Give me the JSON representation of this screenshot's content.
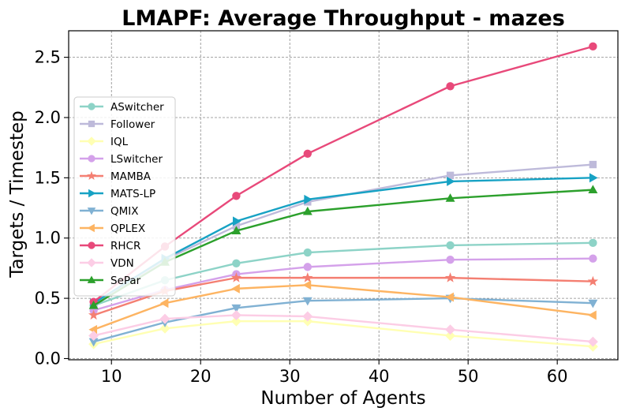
{
  "chart_data": {
    "type": "line",
    "title": "LMAPF: Average Throughput - mazes",
    "xlabel": "Number of Agents",
    "ylabel": "Targets / Timestep",
    "xlim": [
      5.2,
      66.8
    ],
    "ylim": [
      -0.01,
      2.72
    ],
    "xticks": [
      10,
      20,
      30,
      40,
      50,
      60
    ],
    "yticks": [
      0.0,
      0.5,
      1.0,
      1.5,
      2.0,
      2.5
    ],
    "xtick_labels": [
      "10",
      "20",
      "30",
      "40",
      "50",
      "60"
    ],
    "ytick_labels": [
      "0.0",
      "0.5",
      "1.0",
      "1.5",
      "2.0",
      "2.5"
    ],
    "grid": true,
    "legend_position": "center-left",
    "x": [
      8,
      16,
      24,
      32,
      48,
      64
    ],
    "series": [
      {
        "name": "ASwitcher",
        "color": "#8dd3c7",
        "marker": "circle",
        "values": [
          0.44,
          0.65,
          0.79,
          0.88,
          0.94,
          0.96
        ]
      },
      {
        "name": "Follower",
        "color": "#bebada",
        "marker": "square",
        "values": [
          0.45,
          0.82,
          1.1,
          1.3,
          1.52,
          1.61
        ]
      },
      {
        "name": "IQL",
        "color": "#ffffb3",
        "marker": "diamond",
        "values": [
          0.12,
          0.25,
          0.31,
          0.31,
          0.19,
          0.1
        ]
      },
      {
        "name": "LSwitcher",
        "color": "#d4a1ea",
        "marker": "circle",
        "values": [
          0.4,
          0.57,
          0.7,
          0.76,
          0.82,
          0.83
        ]
      },
      {
        "name": "MAMBA",
        "color": "#f47f72",
        "marker": "star",
        "values": [
          0.36,
          0.56,
          0.67,
          0.67,
          0.67,
          0.64
        ]
      },
      {
        "name": "MATS-LP",
        "color": "#17a2c4",
        "marker": "triangle-right",
        "values": [
          0.46,
          0.83,
          1.14,
          1.32,
          1.47,
          1.5
        ]
      },
      {
        "name": "QMIX",
        "color": "#80b1d3",
        "marker": "triangle-down",
        "values": [
          0.14,
          0.3,
          0.42,
          0.48,
          0.5,
          0.46
        ]
      },
      {
        "name": "QPLEX",
        "color": "#fdb462",
        "marker": "triangle-left",
        "values": [
          0.24,
          0.46,
          0.58,
          0.61,
          0.51,
          0.36
        ]
      },
      {
        "name": "RHCR",
        "color": "#e8497a",
        "marker": "circle",
        "values": [
          0.47,
          0.93,
          1.35,
          1.7,
          2.26,
          2.59
        ]
      },
      {
        "name": "VDN",
        "color": "#fccde5",
        "marker": "diamond",
        "values": [
          0.19,
          0.33,
          0.36,
          0.35,
          0.24,
          0.14
        ]
      },
      {
        "name": "SePar",
        "color": "#2ca02c",
        "marker": "triangle-up",
        "values": [
          0.44,
          0.8,
          1.06,
          1.22,
          1.33,
          1.4
        ]
      }
    ]
  }
}
